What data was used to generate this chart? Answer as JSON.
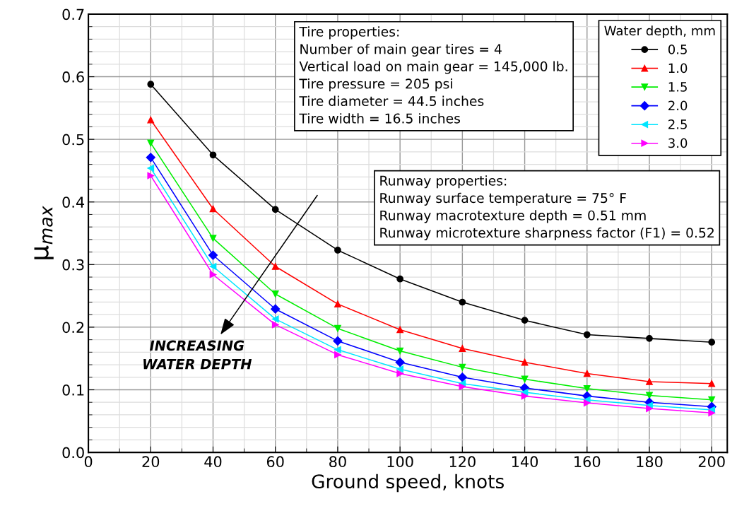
{
  "chart_data": {
    "type": "line",
    "xlabel": "Ground speed, knots",
    "ylabel": "μ$_{max}$",
    "legend_title": "Water depth, mm",
    "legend": "top right",
    "grid": true,
    "x": [
      20,
      40,
      60,
      80,
      100,
      120,
      140,
      160,
      180,
      200
    ],
    "xlim": [
      0,
      205
    ],
    "xticks": [
      0,
      20,
      40,
      60,
      80,
      100,
      120,
      140,
      160,
      180,
      200
    ],
    "ylim": [
      0,
      0.7
    ],
    "yticks": [
      {
        "value": 0,
        "label": "0.0"
      },
      0.1,
      0.2,
      0.3,
      0.4,
      0.5,
      0.6,
      0.7
    ],
    "line_style": "solid",
    "series": [
      {
        "name": "0.5",
        "color": "#000000",
        "marker": "circle",
        "values": [
          0.588,
          0.475,
          0.388,
          0.323,
          0.277,
          0.24,
          0.211,
          0.188,
          0.182,
          0.176
        ]
      },
      {
        "name": "1.0",
        "color": "#ff0000",
        "marker": "triangle",
        "values": [
          0.531,
          0.389,
          0.297,
          0.237,
          0.196,
          0.166,
          0.144,
          0.126,
          0.113,
          0.11
        ]
      },
      {
        "name": "1.5",
        "color": "#00ee00",
        "marker": "triangle-down",
        "values": [
          0.494,
          0.342,
          0.253,
          0.198,
          0.162,
          0.136,
          0.117,
          0.102,
          0.091,
          0.084
        ]
      },
      {
        "name": "2.0",
        "color": "#0000ff",
        "marker": "diamond",
        "values": [
          0.471,
          0.315,
          0.229,
          0.178,
          0.144,
          0.12,
          0.103,
          0.09,
          0.08,
          0.073
        ]
      },
      {
        "name": "2.5",
        "color": "#00e5ff",
        "marker": "triangle-left",
        "values": [
          0.454,
          0.297,
          0.213,
          0.164,
          0.133,
          0.11,
          0.096,
          0.084,
          0.075,
          0.068
        ]
      },
      {
        "name": "3.0",
        "color": "#ff00ff",
        "marker": "triangle-right",
        "values": [
          0.442,
          0.284,
          0.204,
          0.156,
          0.126,
          0.105,
          0.09,
          0.079,
          0.07,
          0.063
        ]
      }
    ],
    "annotations": [
      "Tire properties:\nNumber of main gear tires = 4\nVertical load on main gear = 145,000 lb.\nTire pressure = 205 psi\nTire diameter = 44.5 inches\nTire width = 16.5 inches",
      "Runway properties:\nRunway surface temperature = 75° F\nRunway macrotexture depth = 0.51 mm\nRunway microtexture sharpness factor (F1) = 0.52",
      "INCREASING\nWATER DEPTH"
    ]
  }
}
